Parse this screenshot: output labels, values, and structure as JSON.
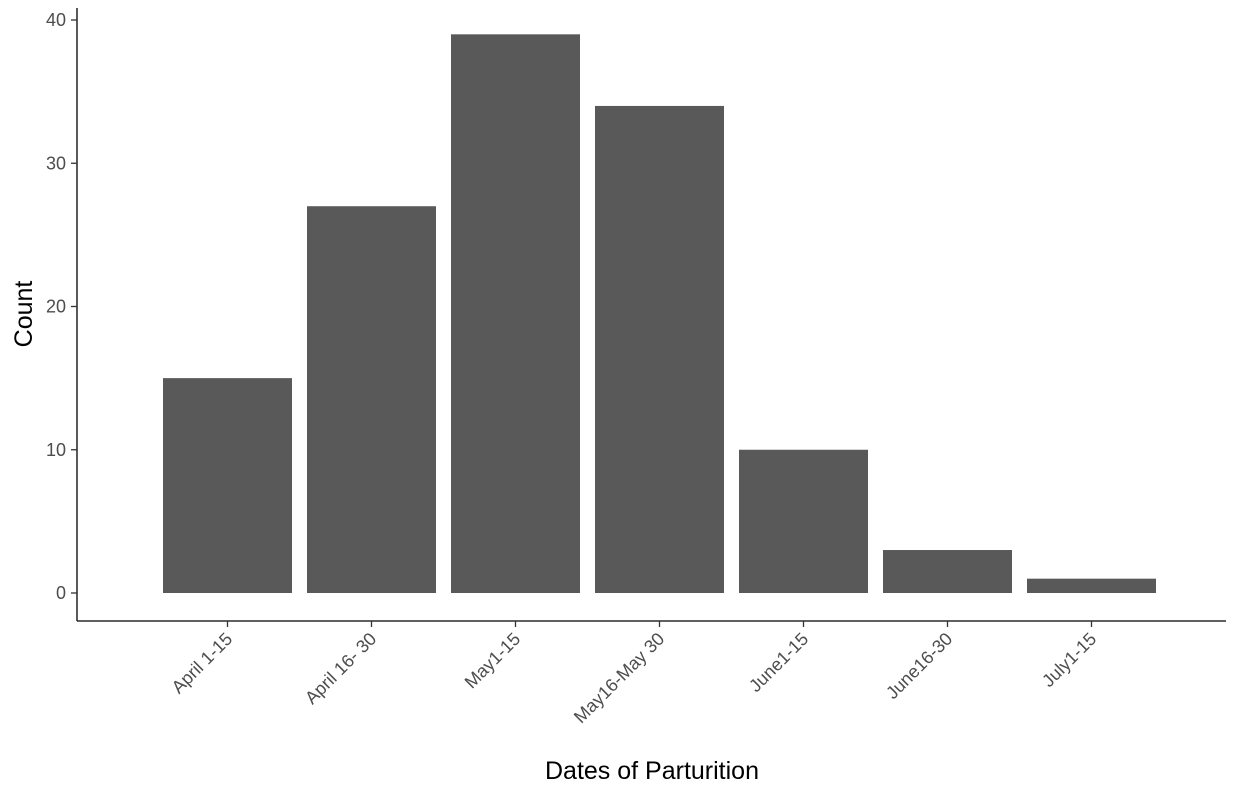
{
  "chart_data": {
    "type": "bar",
    "categories": [
      "April 1-15",
      "April 16- 30",
      "May1-15",
      "May16-May 30",
      "June1-15",
      "June16-30",
      "July1-15"
    ],
    "values": [
      15,
      27,
      39,
      34,
      10,
      3,
      1
    ],
    "title": "",
    "xlabel": "Dates of Parturition",
    "ylabel": "Count",
    "ylim": [
      0,
      40
    ],
    "yticks": [
      0,
      10,
      20,
      30,
      40
    ],
    "grid": false,
    "bar_color": "#595959",
    "x_tick_rotation": -45
  }
}
